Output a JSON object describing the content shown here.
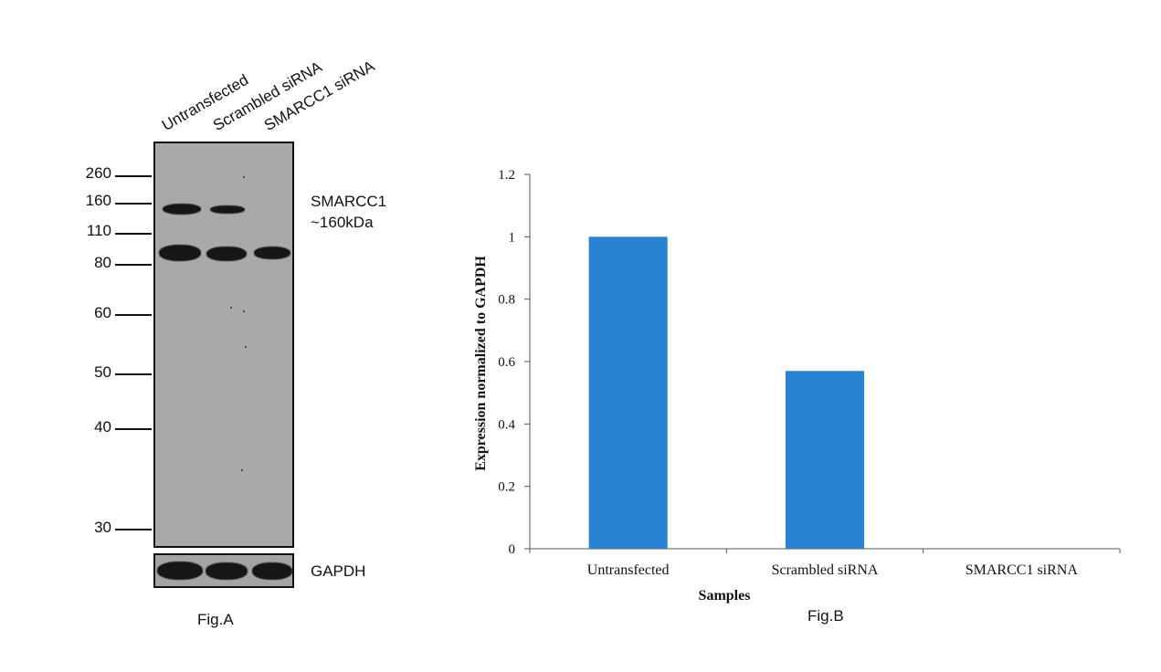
{
  "blot": {
    "lanes": [
      "Untransfected",
      "Scrambled siRNA",
      "SMARCC1 siRNA"
    ],
    "mw_markers": [
      "260",
      "160",
      "110",
      "80",
      "60",
      "50",
      "40",
      "30"
    ],
    "target_label_line1": "SMARCC1",
    "target_label_line2": "~160kDa",
    "loading_control": "GAPDH",
    "fig_label": "Fig.A"
  },
  "chart_data": {
    "type": "bar",
    "categories": [
      "Untransfected",
      "Scrambled siRNA",
      "SMARCC1 siRNA"
    ],
    "values": [
      1.0,
      0.57,
      0.0
    ],
    "title": "",
    "xlabel": "Samples",
    "ylabel": "Expression normalized to GAPDH",
    "ylim": [
      0,
      1.2
    ],
    "yticks": [
      "0",
      "0.2",
      "0.4",
      "0.6",
      "0.8",
      "1",
      "1.2"
    ],
    "bar_color": "#2a82d2",
    "grid": false,
    "legend": "none",
    "fig_label": "Fig.B"
  }
}
